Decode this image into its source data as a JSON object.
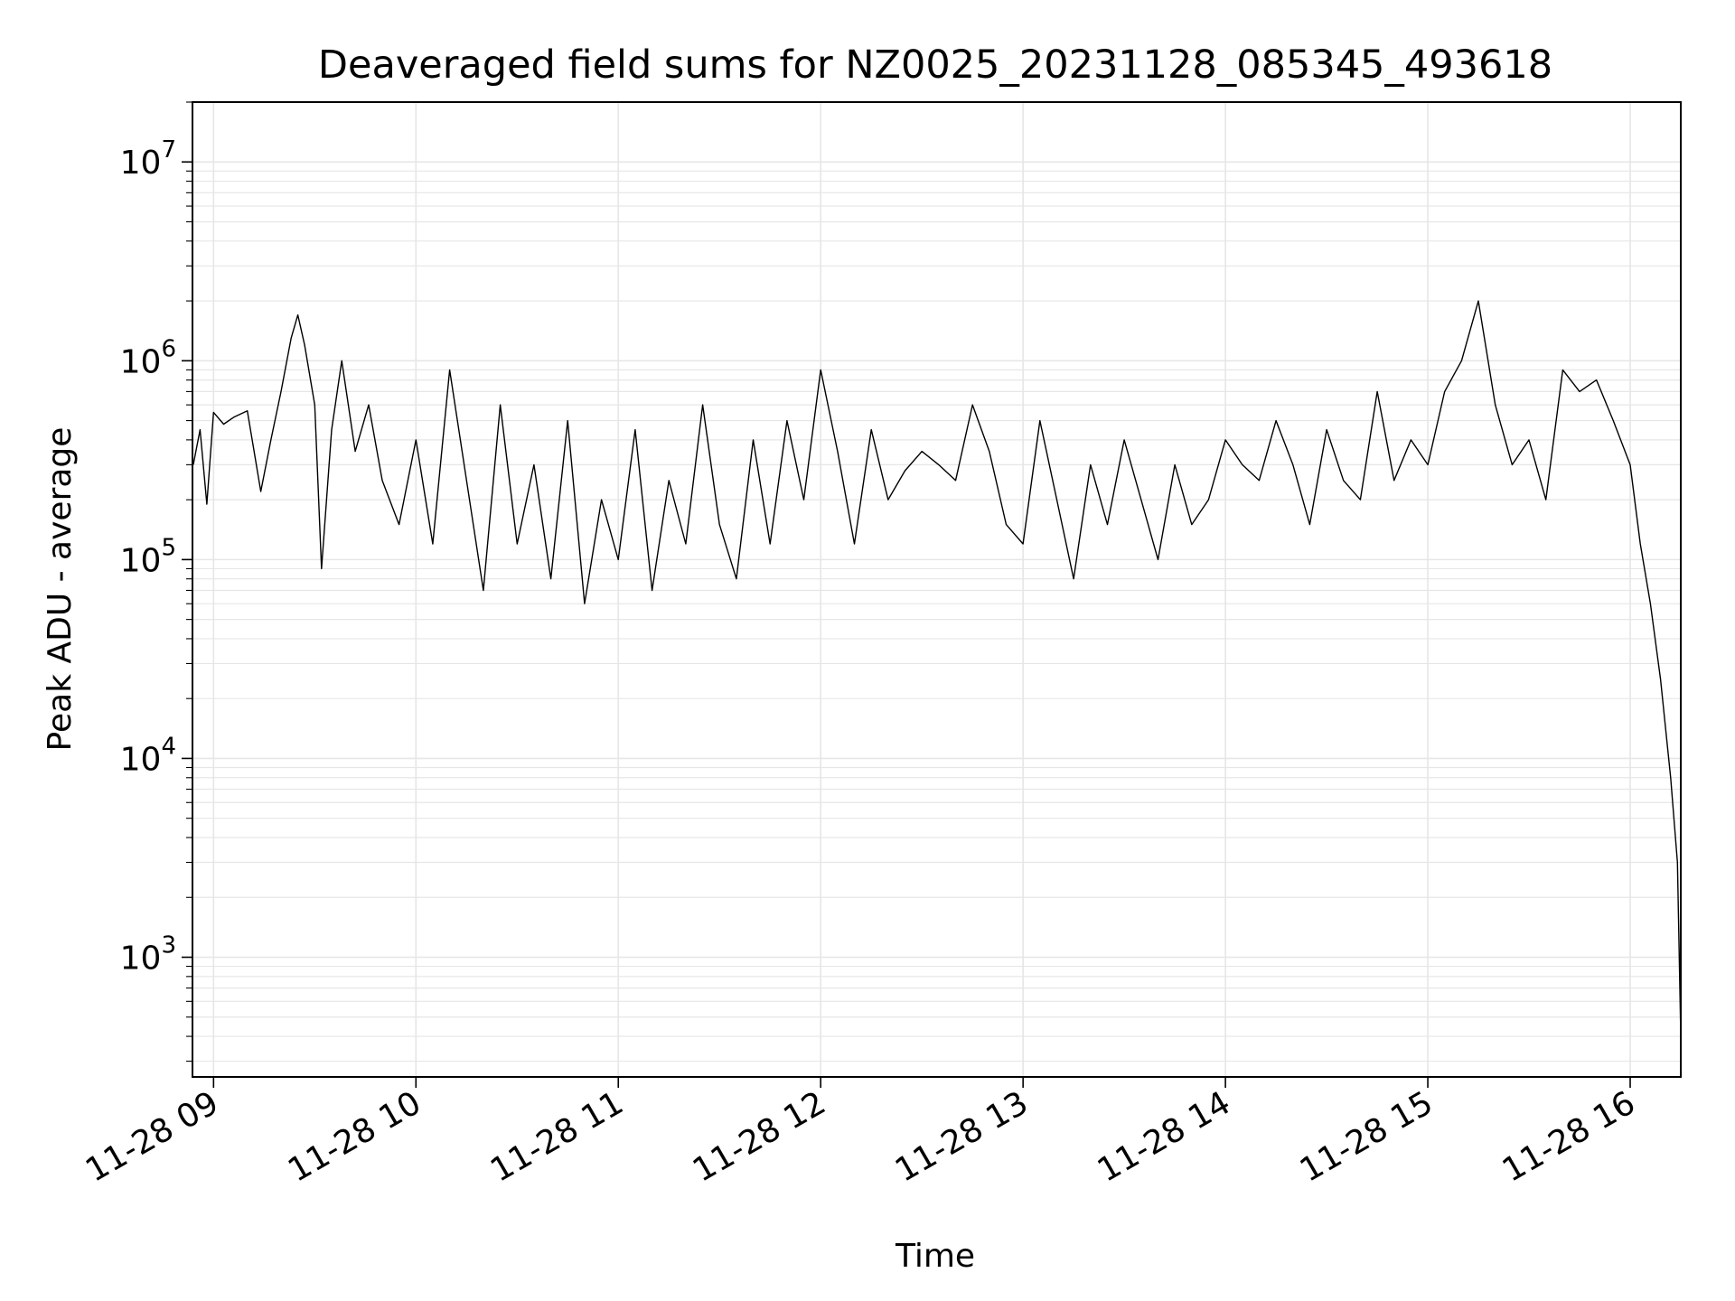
{
  "chart_data": {
    "type": "line",
    "title": "Deaveraged field sums for NZ0025_20231128_085345_493618",
    "xlabel": "Time",
    "ylabel": "Peak ADU - average",
    "yscale": "log",
    "ylim": [
      250,
      20000000
    ],
    "xlim": [
      "2023-11-28 08:53:45",
      "2023-11-28 16:15:00"
    ],
    "grid": "both",
    "line_color": "#000000",
    "x_ticks": [
      {
        "label": "11-28 09",
        "time": "2023-11-28 09:00"
      },
      {
        "label": "11-28 10",
        "time": "2023-11-28 10:00"
      },
      {
        "label": "11-28 11",
        "time": "2023-11-28 11:00"
      },
      {
        "label": "11-28 12",
        "time": "2023-11-28 12:00"
      },
      {
        "label": "11-28 13",
        "time": "2023-11-28 13:00"
      },
      {
        "label": "11-28 14",
        "time": "2023-11-28 14:00"
      },
      {
        "label": "11-28 15",
        "time": "2023-11-28 15:00"
      },
      {
        "label": "11-28 16",
        "time": "2023-11-28 16:00"
      }
    ],
    "y_ticks": [
      {
        "base": "10",
        "exp": "3",
        "value": 1000
      },
      {
        "base": "10",
        "exp": "4",
        "value": 10000
      },
      {
        "base": "10",
        "exp": "5",
        "value": 100000
      },
      {
        "base": "10",
        "exp": "6",
        "value": 1000000
      },
      {
        "base": "10",
        "exp": "7",
        "value": 10000000
      }
    ],
    "series": [
      {
        "x": [
          "2023-11-28 08:54",
          "2023-11-28 08:56",
          "2023-11-28 08:58",
          "2023-11-28 09:00",
          "2023-11-28 09:03",
          "2023-11-28 09:06",
          "2023-11-28 09:10",
          "2023-11-28 09:14",
          "2023-11-28 09:17",
          "2023-11-28 09:20",
          "2023-11-28 09:23",
          "2023-11-28 09:25",
          "2023-11-28 09:27",
          "2023-11-28 09:30",
          "2023-11-28 09:32",
          "2023-11-28 09:35",
          "2023-11-28 09:38",
          "2023-11-28 09:42",
          "2023-11-28 09:46",
          "2023-11-28 09:50",
          "2023-11-28 09:55",
          "2023-11-28 10:00",
          "2023-11-28 10:05",
          "2023-11-28 10:10",
          "2023-11-28 10:15",
          "2023-11-28 10:20",
          "2023-11-28 10:25",
          "2023-11-28 10:30",
          "2023-11-28 10:35",
          "2023-11-28 10:40",
          "2023-11-28 10:45",
          "2023-11-28 10:50",
          "2023-11-28 10:55",
          "2023-11-28 11:00",
          "2023-11-28 11:05",
          "2023-11-28 11:10",
          "2023-11-28 11:15",
          "2023-11-28 11:20",
          "2023-11-28 11:25",
          "2023-11-28 11:30",
          "2023-11-28 11:35",
          "2023-11-28 11:40",
          "2023-11-28 11:45",
          "2023-11-28 11:50",
          "2023-11-28 11:55",
          "2023-11-28 12:00",
          "2023-11-28 12:05",
          "2023-11-28 12:10",
          "2023-11-28 12:15",
          "2023-11-28 12:20",
          "2023-11-28 12:25",
          "2023-11-28 12:30",
          "2023-11-28 12:35",
          "2023-11-28 12:40",
          "2023-11-28 12:45",
          "2023-11-28 12:50",
          "2023-11-28 12:55",
          "2023-11-28 13:00",
          "2023-11-28 13:05",
          "2023-11-28 13:10",
          "2023-11-28 13:15",
          "2023-11-28 13:20",
          "2023-11-28 13:25",
          "2023-11-28 13:30",
          "2023-11-28 13:35",
          "2023-11-28 13:40",
          "2023-11-28 13:45",
          "2023-11-28 13:50",
          "2023-11-28 13:55",
          "2023-11-28 14:00",
          "2023-11-28 14:05",
          "2023-11-28 14:10",
          "2023-11-28 14:15",
          "2023-11-28 14:20",
          "2023-11-28 14:25",
          "2023-11-28 14:30",
          "2023-11-28 14:35",
          "2023-11-28 14:40",
          "2023-11-28 14:45",
          "2023-11-28 14:50",
          "2023-11-28 14:55",
          "2023-11-28 15:00",
          "2023-11-28 15:05",
          "2023-11-28 15:10",
          "2023-11-28 15:15",
          "2023-11-28 15:20",
          "2023-11-28 15:25",
          "2023-11-28 15:30",
          "2023-11-28 15:35",
          "2023-11-28 15:40",
          "2023-11-28 15:45",
          "2023-11-28 15:50",
          "2023-11-28 15:55",
          "2023-11-28 16:00",
          "2023-11-28 16:03",
          "2023-11-28 16:06",
          "2023-11-28 16:09",
          "2023-11-28 16:12",
          "2023-11-28 16:14",
          "2023-11-28 16:15"
        ],
        "y": [
          300000,
          450000,
          190000,
          550000,
          480000,
          520000,
          560000,
          220000,
          400000,
          700000,
          1300000,
          1700000,
          1200000,
          600000,
          90000,
          450000,
          1000000,
          350000,
          600000,
          250000,
          150000,
          400000,
          120000,
          900000,
          250000,
          70000,
          600000,
          120000,
          300000,
          80000,
          500000,
          60000,
          200000,
          100000,
          450000,
          70000,
          250000,
          120000,
          600000,
          150000,
          80000,
          400000,
          120000,
          500000,
          200000,
          900000,
          350000,
          120000,
          450000,
          200000,
          280000,
          350000,
          300000,
          250000,
          600000,
          350000,
          150000,
          120000,
          500000,
          200000,
          80000,
          300000,
          150000,
          400000,
          200000,
          100000,
          300000,
          150000,
          200000,
          400000,
          300000,
          250000,
          500000,
          300000,
          150000,
          450000,
          250000,
          200000,
          700000,
          250000,
          400000,
          300000,
          700000,
          1000000,
          2000000,
          600000,
          300000,
          400000,
          200000,
          900000,
          700000,
          800000,
          500000,
          300000,
          120000,
          60000,
          25000,
          8000,
          3000,
          400
        ]
      }
    ]
  }
}
